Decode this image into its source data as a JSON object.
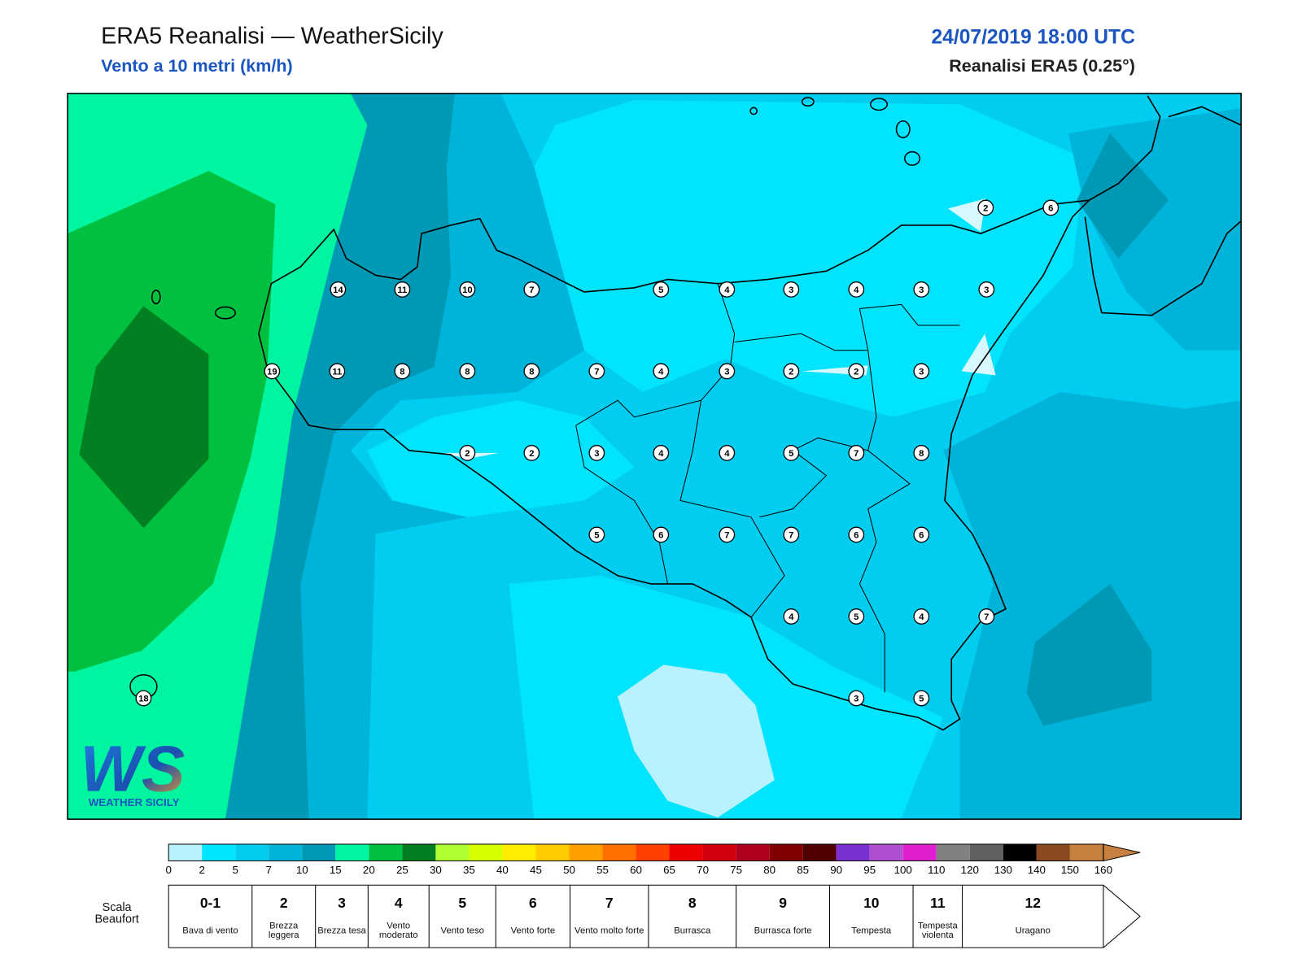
{
  "header": {
    "title": "ERA5 Reanalisi — WeatherSicily",
    "subtitle": "Vento a 10 metri (km/h)",
    "datetime": "24/07/2019 18:00 UTC",
    "source": "Reanalisi ERA5 (0.25°)"
  },
  "map": {
    "station_values": [
      2,
      6,
      14,
      11,
      10,
      7,
      5,
      4,
      3,
      4,
      3,
      3,
      19,
      11,
      8,
      8,
      8,
      7,
      4,
      3,
      2,
      2,
      3,
      2,
      2,
      3,
      4,
      4,
      5,
      7,
      8,
      5,
      6,
      7,
      7,
      6,
      6,
      4,
      5,
      4,
      7,
      18,
      3,
      5
    ]
  },
  "logo": {
    "mark": "WS",
    "name": "WEATHER SICILY"
  },
  "colorbar": {
    "ticks": [
      0,
      2,
      5,
      7,
      10,
      15,
      20,
      25,
      30,
      35,
      40,
      45,
      50,
      55,
      60,
      65,
      70,
      75,
      80,
      85,
      90,
      95,
      100,
      110,
      120,
      130,
      140,
      150,
      160
    ],
    "colors": [
      "#b8f2ff",
      "#00e4ff",
      "#00cdf0",
      "#00b3d8",
      "#0099b5",
      "#00f5a0",
      "#00c040",
      "#008020",
      "#b0ff30",
      "#d8ff00",
      "#ffee00",
      "#ffcc00",
      "#ffa000",
      "#ff7000",
      "#ff4000",
      "#ee0000",
      "#d40010",
      "#b00020",
      "#800000",
      "#500000",
      "#7a30d0",
      "#b050d0",
      "#e020d0",
      "#808080",
      "#606060",
      "#000000",
      "#8b4a20",
      "#c88040"
    ]
  },
  "beaufort": {
    "label": "Scala Beaufort",
    "levels": [
      {
        "force": "0-1",
        "name": "Bava di vento"
      },
      {
        "force": 2,
        "name": "Brezza leggera"
      },
      {
        "force": 3,
        "name": "Brezza tesa"
      },
      {
        "force": 4,
        "name": "Vento moderato"
      },
      {
        "force": 5,
        "name": "Vento teso"
      },
      {
        "force": 6,
        "name": "Vento forte"
      },
      {
        "force": 7,
        "name": "Vento molto forte"
      },
      {
        "force": 8,
        "name": "Burrasca"
      },
      {
        "force": 9,
        "name": "Burrasca forte"
      },
      {
        "force": 10,
        "name": "Tempesta"
      },
      {
        "force": 11,
        "name": "Tempesta violenta"
      },
      {
        "force": 12,
        "name": "Uragano"
      }
    ]
  }
}
